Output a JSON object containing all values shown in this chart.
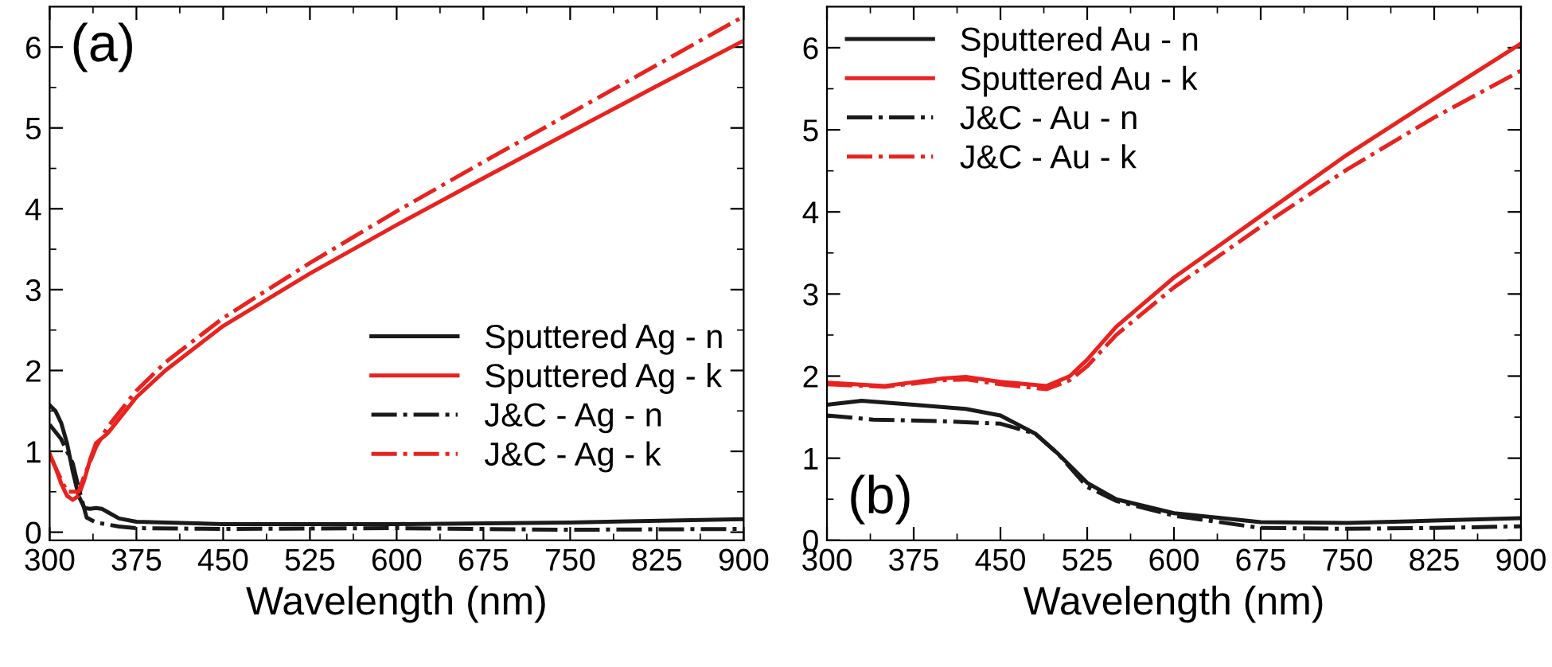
{
  "chart_data": [
    {
      "type": "line",
      "xlabel": "Wavelength (nm)",
      "annotations": [
        "(a)"
      ],
      "legend": "bottom right",
      "grid": false,
      "xlim": [
        300,
        900
      ],
      "ylim": [
        -0.1,
        6.5
      ],
      "xticks": [
        300,
        {
          "value": 337.5,
          "label": null
        },
        375,
        {
          "value": 412.5,
          "label": null
        },
        450,
        {
          "value": 487.5,
          "label": null
        },
        525,
        {
          "value": 562.5,
          "label": null
        },
        600,
        {
          "value": 637.5,
          "label": null
        },
        675,
        {
          "value": 712.5,
          "label": null
        },
        750,
        {
          "value": 787.5,
          "label": null
        },
        825,
        {
          "value": 862.5,
          "label": null
        },
        900
      ],
      "yticks": [
        0,
        {
          "value": 0.5,
          "label": null
        },
        1,
        {
          "value": 1.5,
          "label": null
        },
        2,
        {
          "value": 2.5,
          "label": null
        },
        3,
        {
          "value": 3.5,
          "label": null
        },
        4,
        {
          "value": 4.5,
          "label": null
        },
        5,
        {
          "value": 5.5,
          "label": null
        },
        6
      ],
      "series": [
        {
          "name": "Sputtered Ag - n",
          "color": "#1a1a1a",
          "line_style": "solid",
          "x": [
            300,
            305,
            310,
            315,
            320,
            325,
            330,
            335,
            340,
            345,
            350,
            360,
            375,
            400,
            450,
            525,
            600,
            750,
            900
          ],
          "values": [
            1.57,
            1.5,
            1.35,
            1.1,
            0.75,
            0.45,
            0.3,
            0.29,
            0.3,
            0.29,
            0.25,
            0.17,
            0.13,
            0.12,
            0.1,
            0.1,
            0.1,
            0.12,
            0.16
          ]
        },
        {
          "name": "Sputtered Ag - k",
          "color": "#e8231f",
          "line_style": "solid",
          "x": [
            300,
            305,
            310,
            315,
            320,
            325,
            330,
            335,
            340,
            350,
            360,
            375,
            400,
            450,
            525,
            600,
            675,
            750,
            825,
            900
          ],
          "values": [
            0.97,
            0.8,
            0.6,
            0.45,
            0.4,
            0.45,
            0.65,
            0.9,
            1.1,
            1.22,
            1.4,
            1.67,
            2.0,
            2.55,
            3.2,
            3.8,
            4.38,
            4.95,
            5.52,
            6.08
          ]
        },
        {
          "name": "J&C - Ag - n",
          "color": "#1a1a1a",
          "line_style": "dashdot",
          "x": [
            300,
            310,
            320,
            325,
            332,
            340,
            360,
            375,
            450,
            600,
            750,
            900
          ],
          "values": [
            1.33,
            1.15,
            0.85,
            0.55,
            0.18,
            0.12,
            0.07,
            0.05,
            0.04,
            0.05,
            0.03,
            0.04
          ]
        },
        {
          "name": "J&C - Ag - k",
          "color": "#e8231f",
          "line_style": "dashdot",
          "x": [
            300,
            310,
            315,
            325,
            330,
            340,
            350,
            375,
            400,
            450,
            525,
            600,
            675,
            750,
            825,
            900
          ],
          "values": [
            0.95,
            0.65,
            0.5,
            0.5,
            0.7,
            1.05,
            1.3,
            1.75,
            2.1,
            2.65,
            3.33,
            3.97,
            4.58,
            5.18,
            5.78,
            6.38
          ]
        }
      ]
    },
    {
      "type": "line",
      "xlabel": "Wavelength (nm)",
      "annotations": [
        "(b)"
      ],
      "legend": "top left",
      "grid": false,
      "xlim": [
        300,
        900
      ],
      "ylim": [
        0,
        6.5
      ],
      "xticks": [
        300,
        {
          "value": 337.5,
          "label": null
        },
        375,
        {
          "value": 412.5,
          "label": null
        },
        450,
        {
          "value": 487.5,
          "label": null
        },
        525,
        {
          "value": 562.5,
          "label": null
        },
        600,
        {
          "value": 637.5,
          "label": null
        },
        675,
        {
          "value": 712.5,
          "label": null
        },
        750,
        {
          "value": 787.5,
          "label": null
        },
        825,
        {
          "value": 862.5,
          "label": null
        },
        900
      ],
      "yticks": [
        0,
        {
          "value": 0.5,
          "label": null
        },
        1,
        {
          "value": 1.5,
          "label": null
        },
        2,
        {
          "value": 2.5,
          "label": null
        },
        3,
        {
          "value": 3.5,
          "label": null
        },
        4,
        {
          "value": 4.5,
          "label": null
        },
        5,
        {
          "value": 5.5,
          "label": null
        },
        6
      ],
      "series": [
        {
          "name": "Sputtered Au - n",
          "color": "#1a1a1a",
          "line_style": "solid",
          "x": [
            300,
            330,
            375,
            420,
            450,
            480,
            500,
            525,
            550,
            600,
            675,
            750,
            825,
            900
          ],
          "values": [
            1.65,
            1.7,
            1.65,
            1.6,
            1.52,
            1.3,
            1.05,
            0.7,
            0.5,
            0.33,
            0.22,
            0.21,
            0.24,
            0.27
          ]
        },
        {
          "name": "Sputtered Au - k",
          "color": "#e8231f",
          "line_style": "solid",
          "x": [
            300,
            350,
            400,
            420,
            450,
            490,
            510,
            525,
            550,
            600,
            675,
            750,
            825,
            900
          ],
          "values": [
            1.92,
            1.88,
            1.97,
            1.99,
            1.93,
            1.88,
            2.0,
            2.2,
            2.6,
            3.2,
            3.95,
            4.7,
            5.38,
            6.05
          ]
        },
        {
          "name": "J&C - Au - n",
          "color": "#1a1a1a",
          "line_style": "dashdot",
          "x": [
            300,
            340,
            400,
            450,
            480,
            500,
            525,
            550,
            600,
            675,
            750,
            825,
            900
          ],
          "values": [
            1.52,
            1.47,
            1.45,
            1.42,
            1.3,
            1.05,
            0.65,
            0.48,
            0.3,
            0.15,
            0.14,
            0.15,
            0.17
          ]
        },
        {
          "name": "J&C - Au - k",
          "color": "#e8231f",
          "line_style": "dashdot",
          "x": [
            300,
            350,
            400,
            420,
            450,
            490,
            510,
            525,
            550,
            600,
            675,
            750,
            825,
            900
          ],
          "values": [
            1.9,
            1.87,
            1.95,
            1.96,
            1.9,
            1.84,
            1.95,
            2.12,
            2.5,
            3.08,
            3.82,
            4.52,
            5.15,
            5.72
          ]
        }
      ]
    }
  ]
}
